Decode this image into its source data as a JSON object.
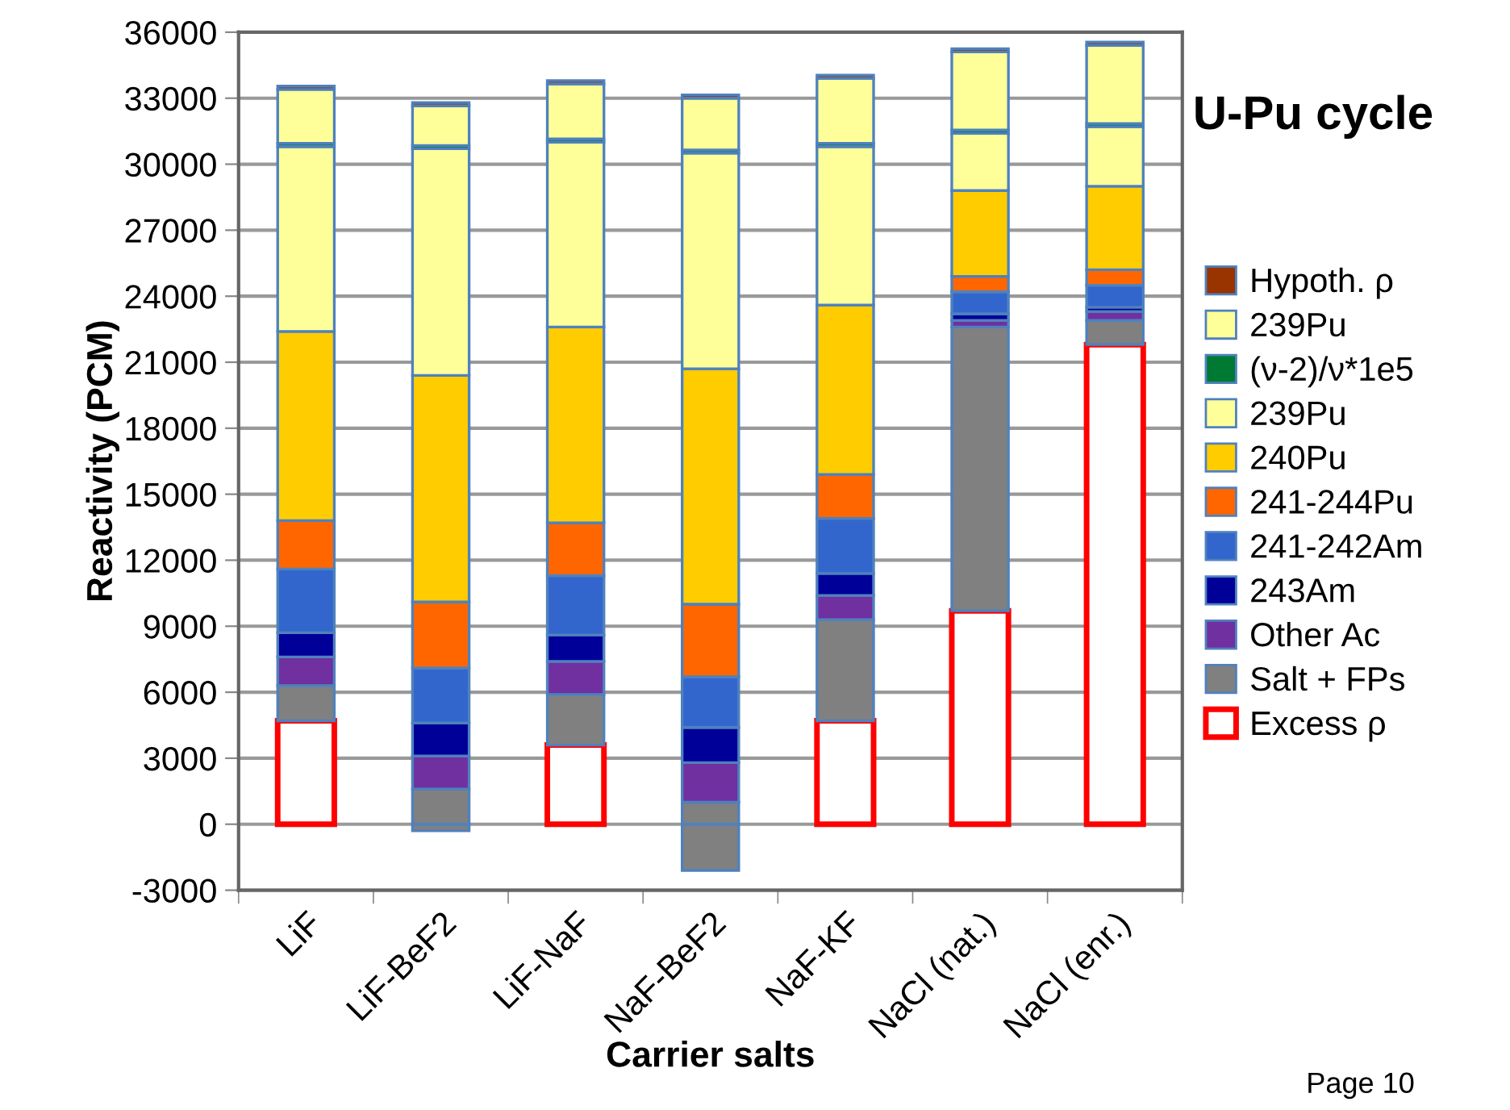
{
  "chart_data": {
    "type": "bar",
    "stacked": true,
    "title": "U-Pu cycle",
    "xlabel": "Carrier salts",
    "ylabel": "Reactivity (PCM)",
    "categories": [
      "LiF",
      "LiF-BeF2",
      "LiF-NaF",
      "NaF-BeF2",
      "NaF-KF",
      "NaCl (nat.)",
      "NaCl (enr.)"
    ],
    "series": [
      {
        "color": "#808080",
        "values": [
          null,
          -300,
          null,
          -2100,
          null,
          null,
          null
        ]
      },
      {
        "name": "Excess ρ",
        "color": "#ff0000",
        "line_style": "solid",
        "values": [
          4700,
          null,
          3600,
          null,
          4700,
          9700,
          21800
        ]
      },
      {
        "name": "Salt + FPs",
        "color": "#808080",
        "values": [
          1600,
          1600,
          2300,
          1000,
          4600,
          12900,
          1100
        ]
      },
      {
        "name": "Other Ac",
        "color": "#7030a0",
        "values": [
          1300,
          1500,
          1500,
          1800,
          1100,
          300,
          400
        ]
      },
      {
        "name": "243Am",
        "color": "#000099",
        "values": [
          1100,
          1500,
          1200,
          1600,
          1000,
          300,
          200
        ]
      },
      {
        "name": "241-242Am",
        "color": "#3366cc",
        "values": [
          2900,
          2500,
          2700,
          2300,
          2500,
          1000,
          1000
        ]
      },
      {
        "name": "241-244Pu",
        "color": "#ff6600",
        "values": [
          2200,
          3000,
          2400,
          3300,
          2000,
          700,
          700
        ]
      },
      {
        "name": "240Pu",
        "color": "#ffcc00",
        "values": [
          8600,
          10300,
          8900,
          10700,
          7700,
          3900,
          3800
        ]
      },
      {
        "name": "239Pu",
        "color": "#ffff99",
        "values": [
          8400,
          10300,
          8400,
          9800,
          7200,
          2600,
          2700
        ]
      },
      {
        "name": "(ν-2)/ν*1e5",
        "color": "#007a33",
        "values": [
          150,
          150,
          150,
          150,
          150,
          150,
          150
        ]
      },
      {
        "name": "239Pu",
        "color": "#ffff99",
        "values": [
          2450,
          1800,
          2500,
          2350,
          2950,
          3550,
          3550
        ]
      },
      {
        "name": "Hypoth. ρ",
        "color": "#993300",
        "values": [
          150,
          150,
          150,
          150,
          150,
          150,
          150
        ]
      }
    ],
    "ylim": [
      -3000,
      36000
    ],
    "yticks": [
      -3000,
      0,
      3000,
      6000,
      9000,
      12000,
      15000,
      18000,
      21000,
      24000,
      27000,
      30000,
      33000,
      36000
    ],
    "grid": "y",
    "legend": "right",
    "annotations": [
      "Page 10"
    ]
  }
}
